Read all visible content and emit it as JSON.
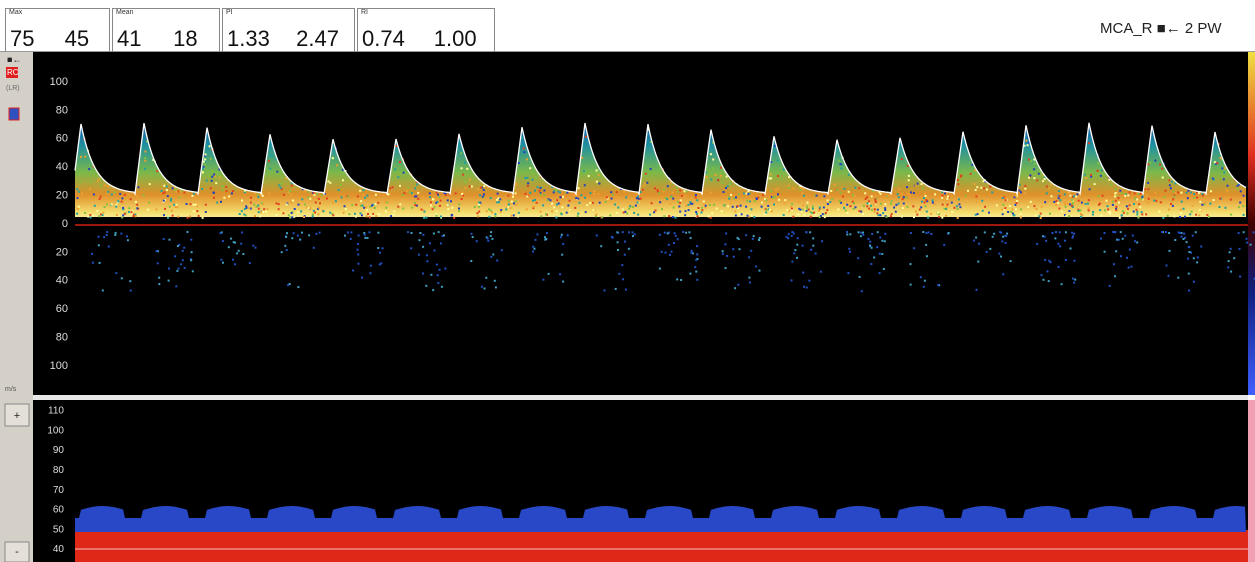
{
  "header": {
    "fields": [
      {
        "label": "Max",
        "values": [
          "75",
          "45"
        ]
      },
      {
        "label": "Mean",
        "values": [
          "41",
          "18"
        ]
      },
      {
        "label": "PI",
        "values": [
          "1.33",
          "2.47"
        ]
      },
      {
        "label": "RI",
        "values": [
          "0.74",
          "1.00"
        ]
      }
    ],
    "probe": "MCA_R ■← 2 PW"
  },
  "sidebar": {
    "direction": "■←",
    "mode": "RC",
    "range": "(LR)",
    "unit": "m/s",
    "zoom_in": "+",
    "zoom_out": "-"
  },
  "spectrum": {
    "axis_labels": [
      "100",
      "80",
      "60",
      "40",
      "20",
      "0",
      "20",
      "40",
      "60",
      "80",
      "100"
    ]
  },
  "mmode": {
    "axis_labels": [
      "110",
      "100",
      "90",
      "80",
      "70",
      "60",
      "50",
      "40"
    ]
  }
}
